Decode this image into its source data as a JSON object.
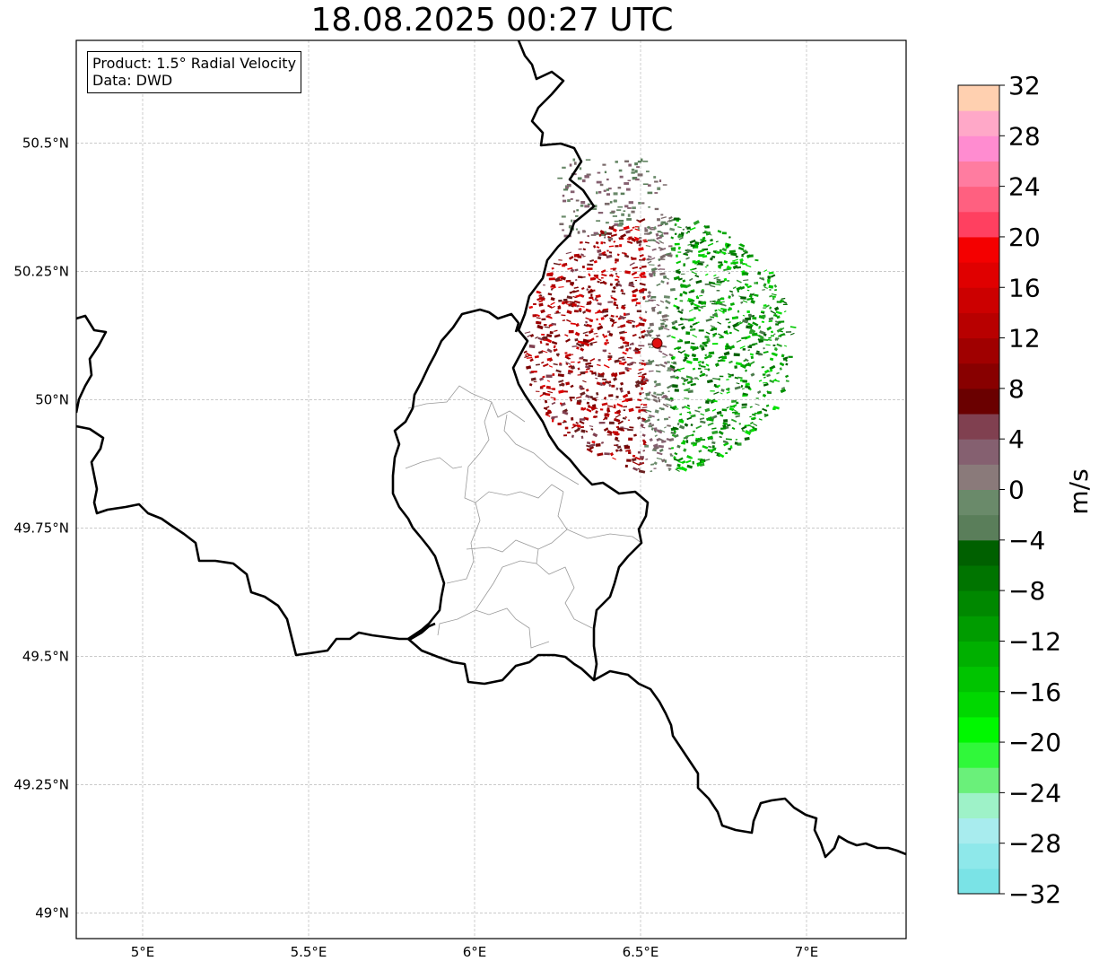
{
  "title": "18.08.2025 00:27 UTC",
  "info": {
    "product": "Product: 1.5° Radial Velocity",
    "data": "Data: DWD"
  },
  "axes": {
    "lon_range": [
      4.8,
      7.3
    ],
    "lat_range": [
      48.95,
      50.7
    ],
    "x_ticks": [
      "5°E",
      "5.5°E",
      "6°E",
      "6.5°E",
      "7°E"
    ],
    "x_tick_values": [
      5.0,
      5.5,
      6.0,
      6.5,
      7.0
    ],
    "y_ticks": [
      "49°N",
      "49.25°N",
      "49.5°N",
      "49.75°N",
      "50°N",
      "50.25°N",
      "50.5°N"
    ],
    "y_tick_values": [
      49.0,
      49.25,
      49.5,
      49.75,
      50.0,
      50.25,
      50.5
    ],
    "grid": true
  },
  "radar": {
    "site_lon": 6.55,
    "site_lat": 50.11,
    "site_color": "#e01010"
  },
  "colorbar": {
    "label": "m/s",
    "min": -32,
    "max": 32,
    "tick_labels": [
      "32",
      "28",
      "24",
      "20",
      "16",
      "12",
      "8",
      "4",
      "0",
      "−4",
      "−8",
      "−12",
      "−16",
      "−20",
      "−24",
      "−28",
      "−32"
    ],
    "colors_bottom_to_top": [
      "#7ae3e6",
      "#8ee8ea",
      "#a8ecee",
      "#9ef2c8",
      "#6af07a",
      "#30f83a",
      "#00f800",
      "#00d800",
      "#00c400",
      "#00b000",
      "#009c00",
      "#008800",
      "#007400",
      "#006000",
      "#5a7e5a",
      "#6a8a6a",
      "#8a7a7a",
      "#856070",
      "#804050",
      "#6a0000",
      "#880000",
      "#a00000",
      "#b80000",
      "#cc0000",
      "#e00000",
      "#f40000",
      "#ff4060",
      "#ff6080",
      "#ff7ca0",
      "#ff8cd0",
      "#ffa8c8",
      "#ffd0b0"
    ]
  }
}
